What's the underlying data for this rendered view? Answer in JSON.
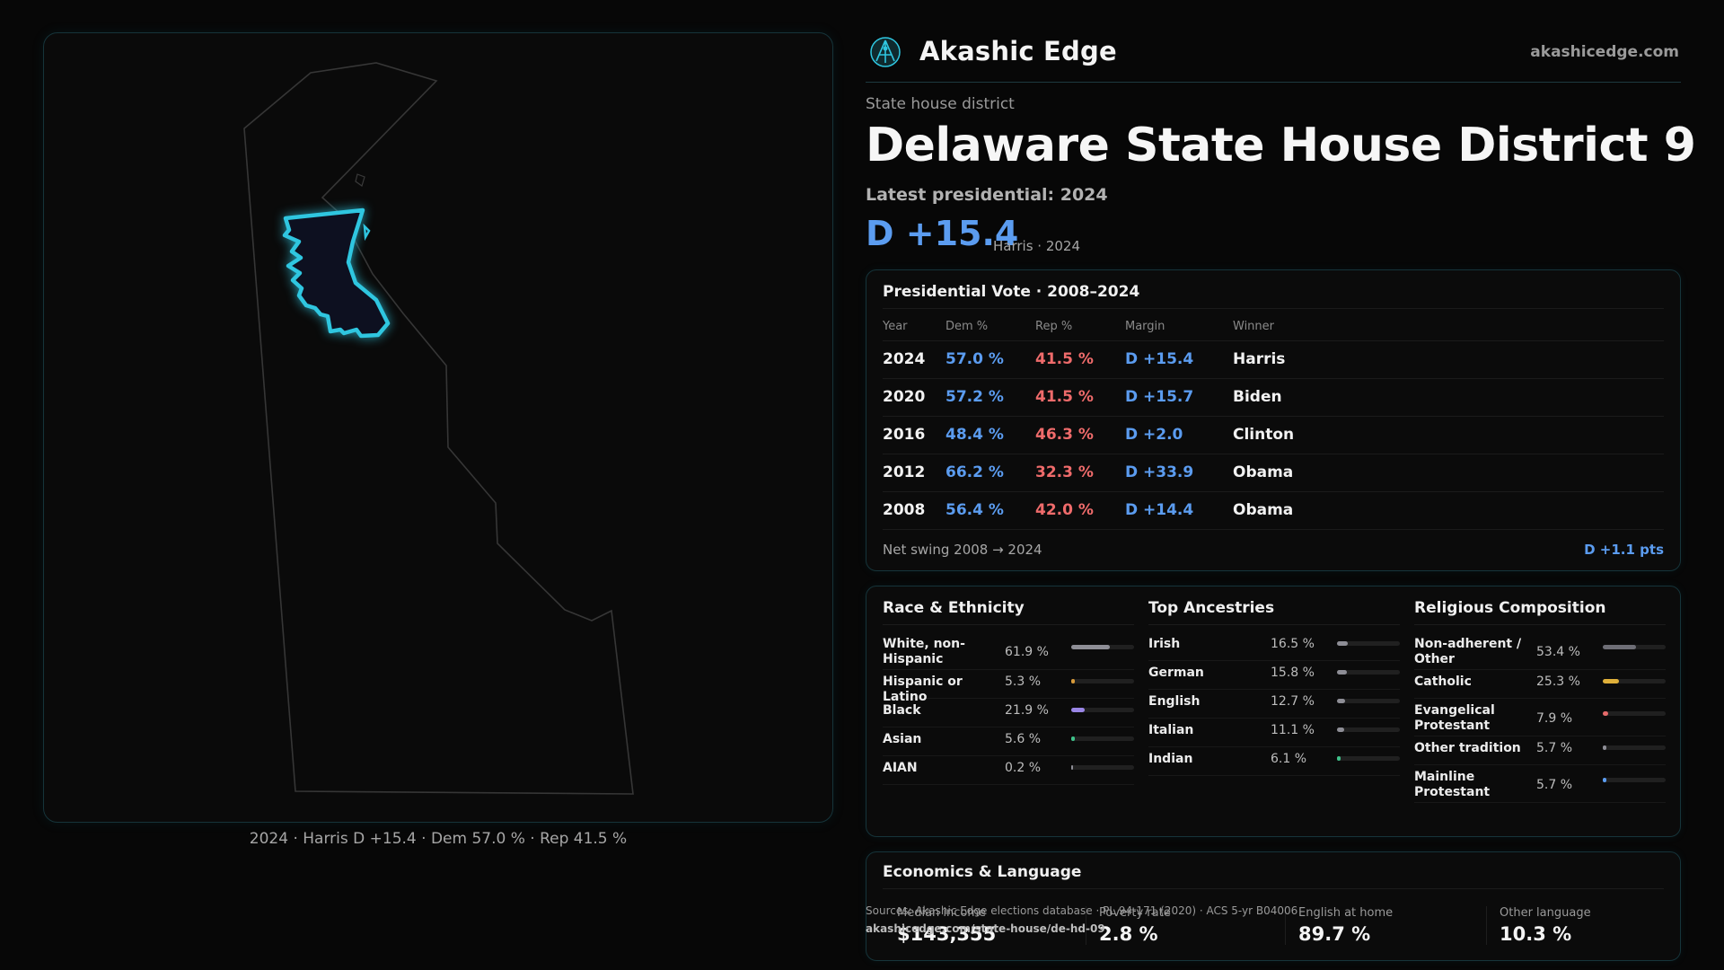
{
  "brand": {
    "name": "Akashic Edge",
    "site": "akashicedge.com",
    "accent": "#2fc6e0"
  },
  "header": {
    "kicker": "State house district",
    "title": "Delaware State House District 9",
    "latest": "Latest presidential: 2024",
    "margin": "D +15.4",
    "margin_sub": "Harris · 2024"
  },
  "map": {
    "caption": "2024 · Harris D +15.4 · Dem 57.0 % · Rep 41.5 %",
    "state_outline_color": "#3a3a3a",
    "district_color": "#2fc6e0"
  },
  "presidential": {
    "title": "Presidential Vote · 2008–2024",
    "columns": [
      "Year",
      "Dem %",
      "Rep %",
      "Margin",
      "Winner"
    ],
    "rows": [
      {
        "year": "2024",
        "dem": "57.0 %",
        "rep": "41.5 %",
        "margin": "D +15.4",
        "winner": "Harris"
      },
      {
        "year": "2020",
        "dem": "57.2 %",
        "rep": "41.5 %",
        "margin": "D +15.7",
        "winner": "Biden"
      },
      {
        "year": "2016",
        "dem": "48.4 %",
        "rep": "46.3 %",
        "margin": "D +2.0",
        "winner": "Clinton"
      },
      {
        "year": "2012",
        "dem": "66.2 %",
        "rep": "32.3 %",
        "margin": "D +33.9",
        "winner": "Obama"
      },
      {
        "year": "2008",
        "dem": "56.4 %",
        "rep": "42.0 %",
        "margin": "D +14.4",
        "winner": "Obama"
      }
    ],
    "swing_label": "Net swing 2008 → 2024",
    "swing_value": "D +1.1 pts"
  },
  "race": {
    "title": "Race & Ethnicity",
    "items": [
      {
        "label": "White, non-Hispanic",
        "pct": "61.9 %",
        "value": 61.9,
        "color": "#8e8e96"
      },
      {
        "label": "Hispanic or Latino",
        "pct": "5.3 %",
        "value": 5.3,
        "color": "#d79a3a"
      },
      {
        "label": "Black",
        "pct": "21.9 %",
        "value": 21.9,
        "color": "#9a86e6"
      },
      {
        "label": "Asian",
        "pct": "5.6 %",
        "value": 5.6,
        "color": "#3fc28a"
      },
      {
        "label": "AIAN",
        "pct": "0.2 %",
        "value": 0.2,
        "color": "#8e8e96"
      }
    ]
  },
  "ancestry": {
    "title": "Top Ancestries",
    "items": [
      {
        "label": "Irish",
        "pct": "16.5 %",
        "value": 16.5,
        "color": "#8e8e96"
      },
      {
        "label": "German",
        "pct": "15.8 %",
        "value": 15.8,
        "color": "#8e8e96"
      },
      {
        "label": "English",
        "pct": "12.7 %",
        "value": 12.7,
        "color": "#8e8e96"
      },
      {
        "label": "Italian",
        "pct": "11.1 %",
        "value": 11.1,
        "color": "#8e8e96"
      },
      {
        "label": "Indian",
        "pct": "6.1 %",
        "value": 6.1,
        "color": "#3fc28a"
      }
    ]
  },
  "religion": {
    "title": "Religious Composition",
    "items": [
      {
        "label": "Non-adherent / Other",
        "pct": "53.4 %",
        "value": 53.4,
        "color": "#6e6e76"
      },
      {
        "label": "Catholic",
        "pct": "25.3 %",
        "value": 25.3,
        "color": "#e0b03a"
      },
      {
        "label": "Evangelical Protestant",
        "pct": "7.9 %",
        "value": 7.9,
        "color": "#e56a6a"
      },
      {
        "label": "Other tradition",
        "pct": "5.7 %",
        "value": 5.7,
        "color": "#8e8e96"
      },
      {
        "label": "Mainline Protestant",
        "pct": "5.7 %",
        "value": 5.7,
        "color": "#5b9cf0"
      }
    ]
  },
  "economics": {
    "title": "Economics & Language",
    "stats": [
      {
        "label": "Median income",
        "value": "$143,355"
      },
      {
        "label": "Poverty rate",
        "value": "2.8 %"
      },
      {
        "label": "English at home",
        "value": "89.7 %"
      },
      {
        "label": "Other language",
        "value": "10.3 %"
      }
    ]
  },
  "footer": {
    "sources": "Sources: Akashic Edge elections database · PL 94-171 (2020) · ACS 5-yr B04006",
    "url": "akashicedge.com/state-house/de-hd-09"
  }
}
